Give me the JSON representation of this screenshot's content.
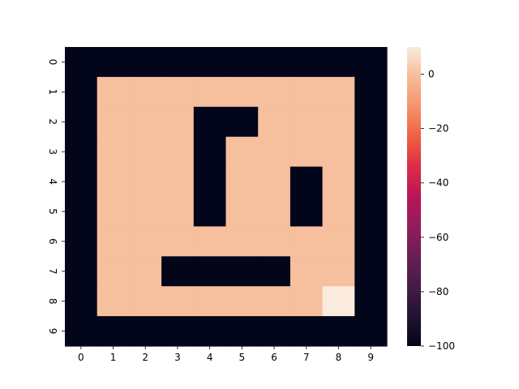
{
  "chart_data": {
    "type": "heatmap",
    "title": "",
    "xlabel": "",
    "ylabel": "",
    "x_categories": [
      "0",
      "1",
      "2",
      "3",
      "4",
      "5",
      "6",
      "7",
      "8",
      "9"
    ],
    "y_categories": [
      "0",
      "1",
      "2",
      "3",
      "4",
      "5",
      "6",
      "7",
      "8",
      "9"
    ],
    "values": [
      [
        -100,
        -100,
        -100,
        -100,
        -100,
        -100,
        -100,
        -100,
        -100,
        -100
      ],
      [
        -100,
        0,
        0,
        0,
        0,
        0,
        0,
        0,
        0,
        -100
      ],
      [
        -100,
        0,
        0,
        0,
        -100,
        -100,
        0,
        0,
        0,
        -100
      ],
      [
        -100,
        0,
        0,
        0,
        -100,
        0,
        0,
        0,
        0,
        -100
      ],
      [
        -100,
        0,
        0,
        0,
        -100,
        0,
        0,
        -100,
        0,
        -100
      ],
      [
        -100,
        0,
        0,
        0,
        -100,
        0,
        0,
        -100,
        0,
        -100
      ],
      [
        -100,
        0,
        0,
        0,
        0,
        0,
        0,
        0,
        0,
        -100
      ],
      [
        -100,
        0,
        0,
        -100,
        -100,
        -100,
        -100,
        0,
        0,
        -100
      ],
      [
        -100,
        0,
        0,
        0,
        0,
        0,
        0,
        0,
        10,
        -100
      ],
      [
        -100,
        -100,
        -100,
        -100,
        -100,
        -100,
        -100,
        -100,
        -100,
        -100
      ]
    ],
    "colorbar": {
      "vmin": -100,
      "vmax": 10,
      "ticks": [
        0,
        -20,
        -40,
        -60,
        -80,
        -100
      ],
      "tick_labels": [
        "0",
        "−20",
        "−40",
        "−60",
        "−80",
        "−100"
      ]
    },
    "colormap": "rocket",
    "grid": false,
    "legend": "colorbar-right"
  }
}
